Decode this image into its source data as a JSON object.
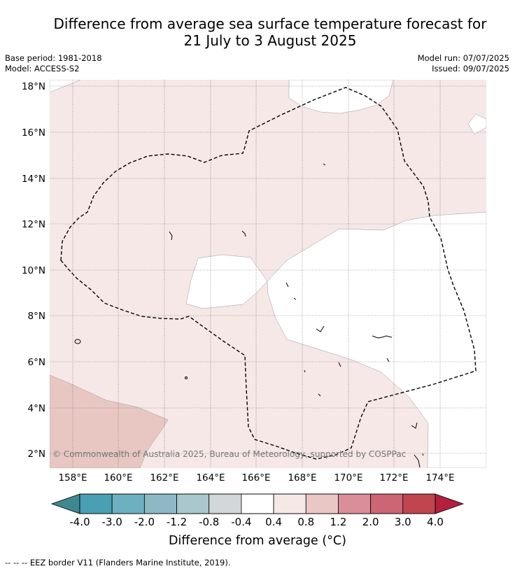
{
  "title_line1": "Difference from average sea surface temperature forecast for",
  "title_line2": "21 July to 3 August 2025",
  "meta": {
    "base_period": "Base period: 1981-2018",
    "model": "Model: ACCESS-S2",
    "model_run": "Model run: 07/07/2025",
    "issued": "Issued: 09/07/2025"
  },
  "map": {
    "lat_labels": [
      "18°N",
      "16°N",
      "14°N",
      "12°N",
      "10°N",
      "8°N",
      "6°N",
      "4°N",
      "2°N"
    ],
    "lon_labels": [
      "158°E",
      "160°E",
      "162°E",
      "164°E",
      "166°E",
      "168°E",
      "170°E",
      "172°E",
      "174°E"
    ],
    "copyright": "© Commonwealth of Australia 2025, Bureau of Meteorology, supported by COSPPac"
  },
  "colorbar": {
    "title": "Difference from average (°C)",
    "tick_labels": [
      "-4.0",
      "-3.0",
      "-2.0",
      "-1.2",
      "-0.8",
      "-0.4",
      "0.4",
      "0.8",
      "1.2",
      "2.0",
      "3.0",
      "4.0"
    ],
    "colors": [
      "#4a9fb3",
      "#6db0bf",
      "#8db9c5",
      "#a9c7cc",
      "#d2d8d9",
      "#ffffff",
      "#f5e8e7",
      "#e9c7c4",
      "#d98e98",
      "#cc6574",
      "#c0454f"
    ],
    "under_color": "#3f8890",
    "over_color": "#b3203e"
  },
  "footnote": "--  --  -- EEZ border V11 (Flanders Marine Institute, 2019)."
}
